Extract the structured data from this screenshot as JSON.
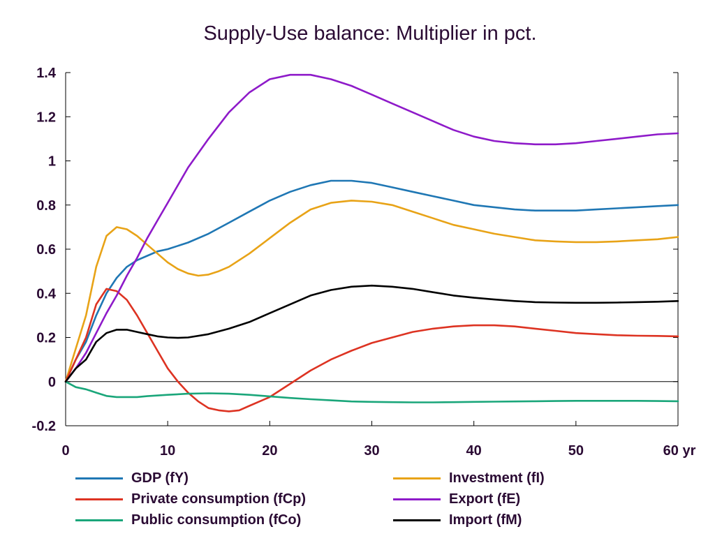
{
  "chart_data": {
    "type": "line",
    "title": "Supply-Use balance: Multiplier in pct.",
    "xlabel": "",
    "ylabel": "",
    "xlim": [
      0,
      60
    ],
    "ylim": [
      -0.2,
      1.4
    ],
    "xticks": [
      0,
      10,
      20,
      30,
      40,
      50,
      60
    ],
    "xtick_labels": [
      "0",
      "10",
      "20",
      "30",
      "40",
      "50",
      "60 yr"
    ],
    "yticks": [
      -0.2,
      0,
      0.2,
      0.4,
      0.6,
      0.8,
      1,
      1.2,
      1.4
    ],
    "ytick_labels": [
      "-0.2",
      "0",
      "0.2",
      "0.4",
      "0.6",
      "0.8",
      "1",
      "1.2",
      "1.4"
    ],
    "grid": false,
    "legend_position": "bottom",
    "series": [
      {
        "name": "GDP (fY)",
        "color": "#1f77b4",
        "x": [
          0,
          1,
          2,
          3,
          4,
          5,
          6,
          7,
          8,
          9,
          10,
          12,
          14,
          16,
          18,
          20,
          22,
          24,
          26,
          28,
          30,
          32,
          34,
          36,
          38,
          40,
          42,
          44,
          46,
          48,
          50,
          52,
          54,
          56,
          58,
          60
        ],
        "y": [
          0,
          0.1,
          0.18,
          0.3,
          0.4,
          0.47,
          0.52,
          0.55,
          0.57,
          0.59,
          0.6,
          0.63,
          0.67,
          0.72,
          0.77,
          0.82,
          0.86,
          0.89,
          0.91,
          0.91,
          0.9,
          0.88,
          0.86,
          0.84,
          0.82,
          0.8,
          0.79,
          0.78,
          0.775,
          0.775,
          0.775,
          0.78,
          0.785,
          0.79,
          0.795,
          0.8
        ]
      },
      {
        "name": "Investment (fI)",
        "color": "#e8a317",
        "x": [
          0,
          1,
          2,
          3,
          4,
          5,
          6,
          7,
          8,
          9,
          10,
          11,
          12,
          13,
          14,
          15,
          16,
          18,
          20,
          22,
          24,
          26,
          28,
          30,
          32,
          34,
          36,
          38,
          40,
          42,
          44,
          46,
          48,
          50,
          52,
          54,
          56,
          58,
          60
        ],
        "y": [
          0,
          0.15,
          0.3,
          0.52,
          0.66,
          0.7,
          0.69,
          0.66,
          0.62,
          0.58,
          0.54,
          0.51,
          0.49,
          0.48,
          0.485,
          0.5,
          0.52,
          0.58,
          0.65,
          0.72,
          0.78,
          0.81,
          0.82,
          0.815,
          0.8,
          0.77,
          0.74,
          0.71,
          0.69,
          0.67,
          0.655,
          0.64,
          0.635,
          0.632,
          0.632,
          0.635,
          0.64,
          0.645,
          0.655
        ]
      },
      {
        "name": "Private consumption (fCp)",
        "color": "#dd3322",
        "x": [
          0,
          1,
          2,
          3,
          4,
          5,
          6,
          7,
          8,
          9,
          10,
          11,
          12,
          13,
          14,
          15,
          16,
          17,
          18,
          19,
          20,
          21,
          22,
          24,
          26,
          28,
          30,
          32,
          34,
          36,
          38,
          40,
          42,
          44,
          46,
          48,
          50,
          52,
          54,
          56,
          58,
          60
        ],
        "y": [
          0,
          0.1,
          0.2,
          0.35,
          0.42,
          0.41,
          0.37,
          0.3,
          0.22,
          0.14,
          0.06,
          0,
          -0.05,
          -0.09,
          -0.12,
          -0.13,
          -0.135,
          -0.13,
          -0.11,
          -0.09,
          -0.07,
          -0.04,
          -0.01,
          0.05,
          0.1,
          0.14,
          0.175,
          0.2,
          0.225,
          0.24,
          0.25,
          0.255,
          0.255,
          0.25,
          0.24,
          0.23,
          0.22,
          0.215,
          0.21,
          0.208,
          0.207,
          0.205
        ]
      },
      {
        "name": "Export (fE)",
        "color": "#8e1ac9",
        "x": [
          0,
          1,
          2,
          3,
          4,
          5,
          6,
          7,
          8,
          9,
          10,
          12,
          14,
          16,
          18,
          20,
          22,
          24,
          26,
          28,
          30,
          32,
          34,
          36,
          38,
          40,
          42,
          44,
          46,
          48,
          50,
          52,
          54,
          56,
          58,
          60
        ],
        "y": [
          0,
          0.06,
          0.13,
          0.22,
          0.31,
          0.39,
          0.48,
          0.56,
          0.65,
          0.73,
          0.81,
          0.97,
          1.1,
          1.22,
          1.31,
          1.37,
          1.39,
          1.39,
          1.37,
          1.34,
          1.3,
          1.26,
          1.22,
          1.18,
          1.14,
          1.11,
          1.09,
          1.08,
          1.075,
          1.075,
          1.08,
          1.09,
          1.1,
          1.11,
          1.12,
          1.125
        ]
      },
      {
        "name": "Public consumption (fCo)",
        "color": "#1aa67a",
        "x": [
          0,
          1,
          2,
          3,
          4,
          5,
          6,
          7,
          8,
          10,
          12,
          14,
          16,
          18,
          20,
          22,
          24,
          26,
          28,
          30,
          32,
          34,
          36,
          38,
          40,
          42,
          44,
          46,
          48,
          50,
          52,
          54,
          56,
          58,
          60
        ],
        "y": [
          0,
          -0.025,
          -0.035,
          -0.05,
          -0.065,
          -0.07,
          -0.07,
          -0.07,
          -0.066,
          -0.06,
          -0.055,
          -0.053,
          -0.055,
          -0.06,
          -0.067,
          -0.074,
          -0.08,
          -0.085,
          -0.09,
          -0.092,
          -0.093,
          -0.094,
          -0.094,
          -0.093,
          -0.092,
          -0.091,
          -0.09,
          -0.089,
          -0.088,
          -0.087,
          -0.087,
          -0.087,
          -0.087,
          -0.088,
          -0.089
        ]
      },
      {
        "name": "Import (fM)",
        "color": "#000000",
        "x": [
          0,
          1,
          2,
          3,
          4,
          5,
          6,
          7,
          8,
          9,
          10,
          11,
          12,
          14,
          16,
          18,
          20,
          22,
          24,
          26,
          28,
          30,
          32,
          34,
          36,
          38,
          40,
          42,
          44,
          46,
          48,
          50,
          52,
          54,
          56,
          58,
          60
        ],
        "y": [
          0,
          0.06,
          0.1,
          0.18,
          0.22,
          0.235,
          0.235,
          0.225,
          0.215,
          0.205,
          0.2,
          0.198,
          0.2,
          0.215,
          0.24,
          0.27,
          0.31,
          0.35,
          0.39,
          0.415,
          0.43,
          0.435,
          0.43,
          0.42,
          0.405,
          0.39,
          0.38,
          0.372,
          0.365,
          0.36,
          0.358,
          0.357,
          0.357,
          0.358,
          0.36,
          0.362,
          0.365
        ]
      }
    ]
  },
  "legend_layout": [
    {
      "series_index": 0,
      "label": "GDP (fY)"
    },
    {
      "series_index": 1,
      "label": "Investment (fI)"
    },
    {
      "series_index": 2,
      "label": "Private consumption (fCp)"
    },
    {
      "series_index": 3,
      "label": "Export (fE)"
    },
    {
      "series_index": 4,
      "label": "Public consumption (fCo)"
    },
    {
      "series_index": 5,
      "label": "Import (fM)"
    }
  ]
}
